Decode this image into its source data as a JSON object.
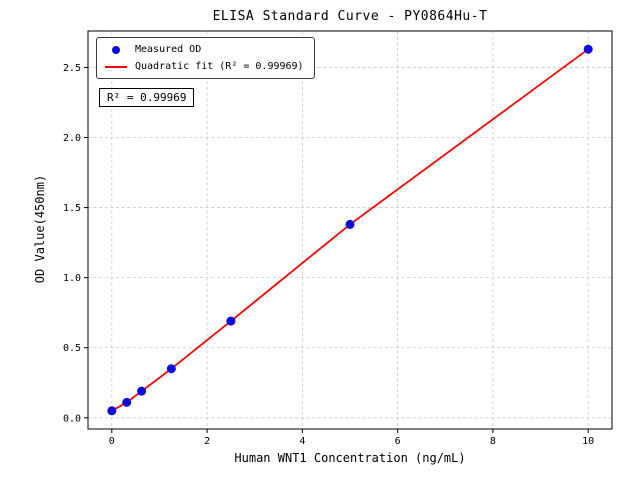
{
  "chart_data": {
    "type": "scatter",
    "title": "ELISA Standard Curve - PY0864Hu-T",
    "xlabel": "Human WNT1 Concentration (ng/mL)",
    "ylabel": "OD Value(450nm)",
    "xlim": [
      -0.5,
      10.5
    ],
    "ylim": [
      -0.08,
      2.76
    ],
    "xticks": [
      0,
      2,
      4,
      6,
      8,
      10
    ],
    "xtick_labels": [
      "0",
      "2",
      "4",
      "6",
      "8",
      "10"
    ],
    "yticks": [
      0,
      0.5,
      1,
      1.5,
      2,
      2.5
    ],
    "ytick_labels": [
      "0.0",
      "0.5",
      "1.0",
      "1.5",
      "2.0",
      "2.5"
    ],
    "grid": true,
    "series": [
      {
        "name": "Measured OD",
        "type": "scatter",
        "color": "#0b0bdd",
        "x": [
          0,
          0.3125,
          0.625,
          1.25,
          2.5,
          5,
          10
        ],
        "y": [
          0.05,
          0.11,
          0.19,
          0.35,
          0.69,
          1.38,
          2.63
        ]
      },
      {
        "name": "Quadratic fit (R² = 0.99969)",
        "type": "line",
        "color": "#ff0000",
        "r_squared": "0.99969"
      }
    ],
    "legend": {
      "position": "upper left"
    },
    "annotation": {
      "text": "R² = 0.99969"
    }
  },
  "colors": {
    "grid": "#c9c9c9",
    "axis": "#000000",
    "background": "#ffffff"
  }
}
